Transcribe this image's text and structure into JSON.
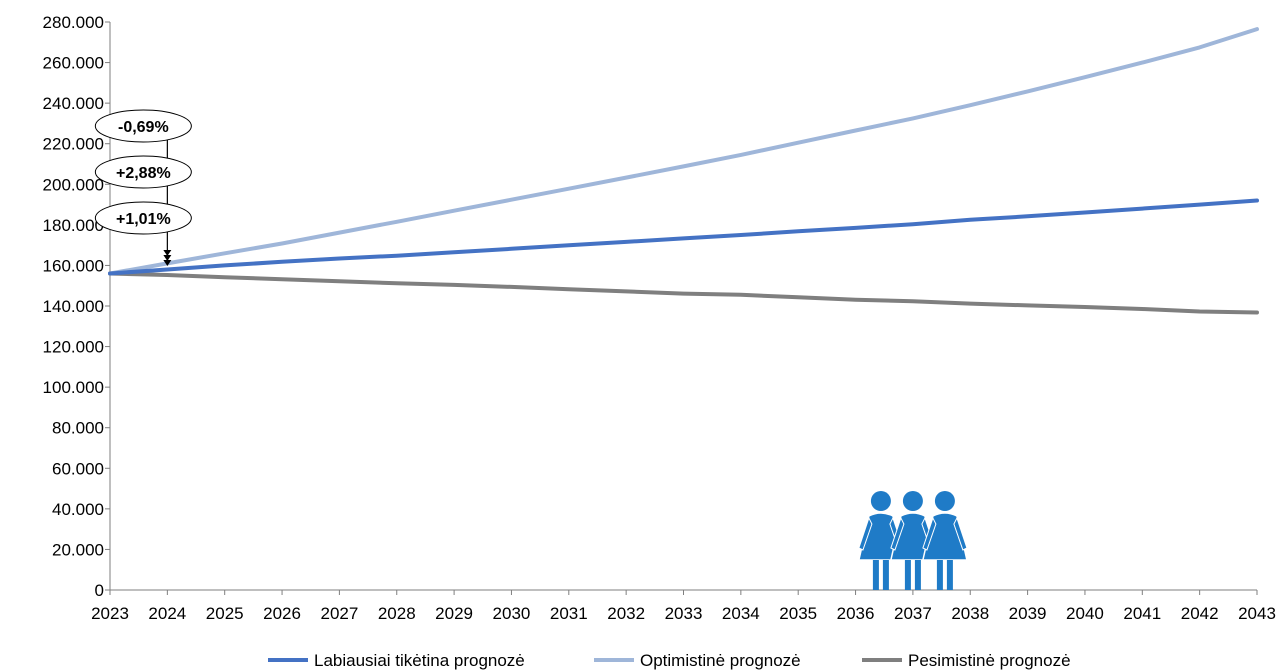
{
  "chart_data": {
    "type": "line",
    "title": "",
    "xlabel": "",
    "ylabel": "",
    "x": [
      2023,
      2024,
      2025,
      2026,
      2027,
      2028,
      2029,
      2030,
      2031,
      2032,
      2033,
      2034,
      2035,
      2036,
      2037,
      2038,
      2039,
      2040,
      2041,
      2042,
      2043
    ],
    "ylim": [
      0,
      280000
    ],
    "y_ticks": [
      0,
      20000,
      40000,
      60000,
      80000,
      100000,
      120000,
      140000,
      160000,
      180000,
      200000,
      220000,
      240000,
      260000,
      280000
    ],
    "y_tick_labels": [
      "0",
      "20.000",
      "40.000",
      "60.000",
      "80.000",
      "100.000",
      "120.000",
      "140.000",
      "160.000",
      "180.000",
      "200.000",
      "220.000",
      "240.000",
      "260.000",
      "280.000"
    ],
    "x_tick_labels": [
      "2023",
      "2024",
      "2025",
      "2026",
      "2027",
      "2028",
      "2029",
      "2030",
      "2031",
      "2032",
      "2033",
      "2034",
      "2035",
      "2036",
      "2037",
      "2038",
      "2039",
      "2040",
      "2041",
      "2042",
      "2043"
    ],
    "grid": false,
    "legend_position": "bottom",
    "series": [
      {
        "name": "Labiausiai tikėtina prognozė",
        "color": "#4472C4",
        "values": [
          156000,
          158000,
          160000,
          161800,
          163400,
          164800,
          166500,
          168200,
          169900,
          171600,
          173300,
          175000,
          176800,
          178500,
          180300,
          182500,
          184200,
          186100,
          188000,
          190000,
          192000
        ]
      },
      {
        "name": "Optimistinė prognozė",
        "color": "#9FB6D9",
        "values": [
          156000,
          161000,
          166000,
          170800,
          176200,
          181500,
          187000,
          192400,
          197800,
          203300,
          208800,
          214500,
          220500,
          226500,
          232500,
          239000,
          245800,
          252800,
          260000,
          267500,
          276500
        ]
      },
      {
        "name": "Pesimistinė prognozė",
        "color": "#7F7F7F",
        "values": [
          156000,
          155300,
          154200,
          153200,
          152200,
          151200,
          150400,
          149400,
          148300,
          147200,
          146100,
          145500,
          144300,
          143100,
          142300,
          141200,
          140300,
          139500,
          138500,
          137300,
          136800
        ]
      }
    ],
    "annotations": [
      {
        "text": "-0,69%",
        "series": "Pesimistinė prognozė",
        "x": 2024
      },
      {
        "text": "+2,88%",
        "series": "Optimistinė prognozė",
        "x": 2024
      },
      {
        "text": "+1,01%",
        "series": "Labiausiai tikėtina prognozė",
        "x": 2024
      }
    ],
    "decorations": [
      {
        "icon": "three-women-icon",
        "color": "#1F7BC7",
        "x_center": 2037
      }
    ]
  }
}
